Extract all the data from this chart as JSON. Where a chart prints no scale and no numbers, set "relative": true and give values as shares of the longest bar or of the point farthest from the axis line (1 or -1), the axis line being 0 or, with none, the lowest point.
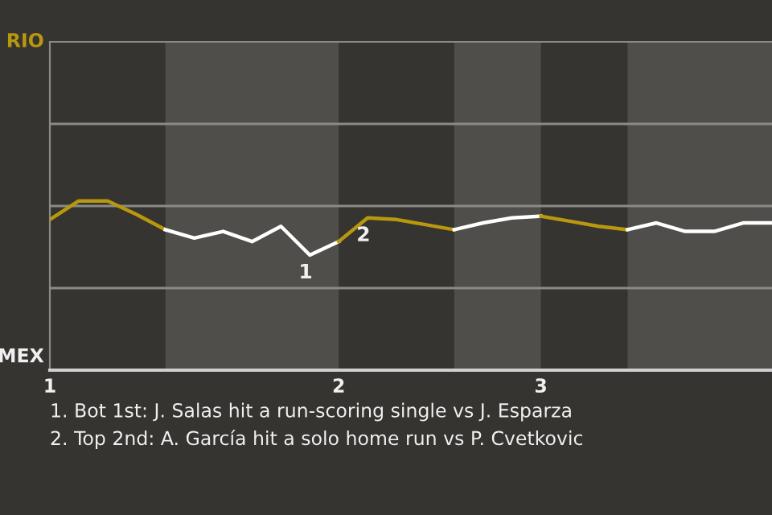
{
  "chart_data": {
    "type": "line",
    "relative": true,
    "categories": [
      "1",
      null,
      null,
      null,
      null,
      null,
      null,
      null,
      null,
      null,
      "2",
      null,
      null,
      null,
      null,
      null,
      null,
      "3",
      null,
      null,
      null,
      null,
      null,
      null,
      null,
      null
    ],
    "series": [
      {
        "color": "#b8980e",
        "values": [
          0.89,
          1,
          1,
          0.92,
          0.83,
          null,
          null,
          null,
          null,
          null,
          null,
          null,
          null,
          null,
          null,
          null,
          null,
          null,
          null,
          null,
          null,
          null,
          null,
          null,
          null,
          null
        ]
      },
      {
        "color": "#ffffff",
        "values": [
          null,
          null,
          null,
          null,
          0.83,
          0.78,
          0.82,
          0.76,
          0.85,
          0.68,
          0.76,
          null,
          null,
          null,
          null,
          null,
          null,
          null,
          null,
          null,
          null,
          null,
          null,
          null,
          null,
          null
        ]
      },
      {
        "color": "#b8980e",
        "values": [
          null,
          null,
          null,
          null,
          null,
          null,
          null,
          null,
          null,
          null,
          0.76,
          0.9,
          0.89,
          0.86,
          0.83,
          null,
          null,
          null,
          null,
          null,
          null,
          null,
          null,
          null,
          null,
          null
        ]
      },
      {
        "color": "#ffffff",
        "values": [
          null,
          null,
          null,
          null,
          null,
          null,
          null,
          null,
          null,
          null,
          null,
          null,
          null,
          null,
          0.83,
          0.87,
          0.9,
          0.91,
          null,
          null,
          null,
          null,
          null,
          null,
          null,
          null
        ]
      },
      {
        "color": "#b8980e",
        "values": [
          null,
          null,
          null,
          null,
          null,
          null,
          null,
          null,
          null,
          null,
          null,
          null,
          null,
          null,
          null,
          null,
          null,
          0.91,
          0.88,
          0.85,
          0.83,
          null,
          null,
          null,
          null,
          null
        ]
      },
      {
        "color": "#ffffff",
        "values": [
          null,
          null,
          null,
          null,
          null,
          null,
          null,
          null,
          null,
          null,
          null,
          null,
          null,
          null,
          null,
          null,
          null,
          null,
          null,
          null,
          0.83,
          0.87,
          0.82,
          0.82,
          0.87,
          0.87
        ]
      }
    ],
    "marker": "none",
    "line_style": "solid",
    "ref_lines": [
      {
        "axis": "y",
        "value": 0.485
      },
      {
        "axis": "y",
        "value": 0.97
      },
      {
        "axis": "y",
        "value": 1.455
      }
    ],
    "annotations": [
      "RIO",
      "MEX",
      {
        "text": "1",
        "y": 0.68
      },
      {
        "text": "2",
        "y": 0.9
      },
      "1. Bot 1st: J. Salas hit a run-scoring single vs J. Esparza",
      "2. Top 2nd: A. García hit a solo home run vs P. Cvetkovic"
    ]
  }
}
